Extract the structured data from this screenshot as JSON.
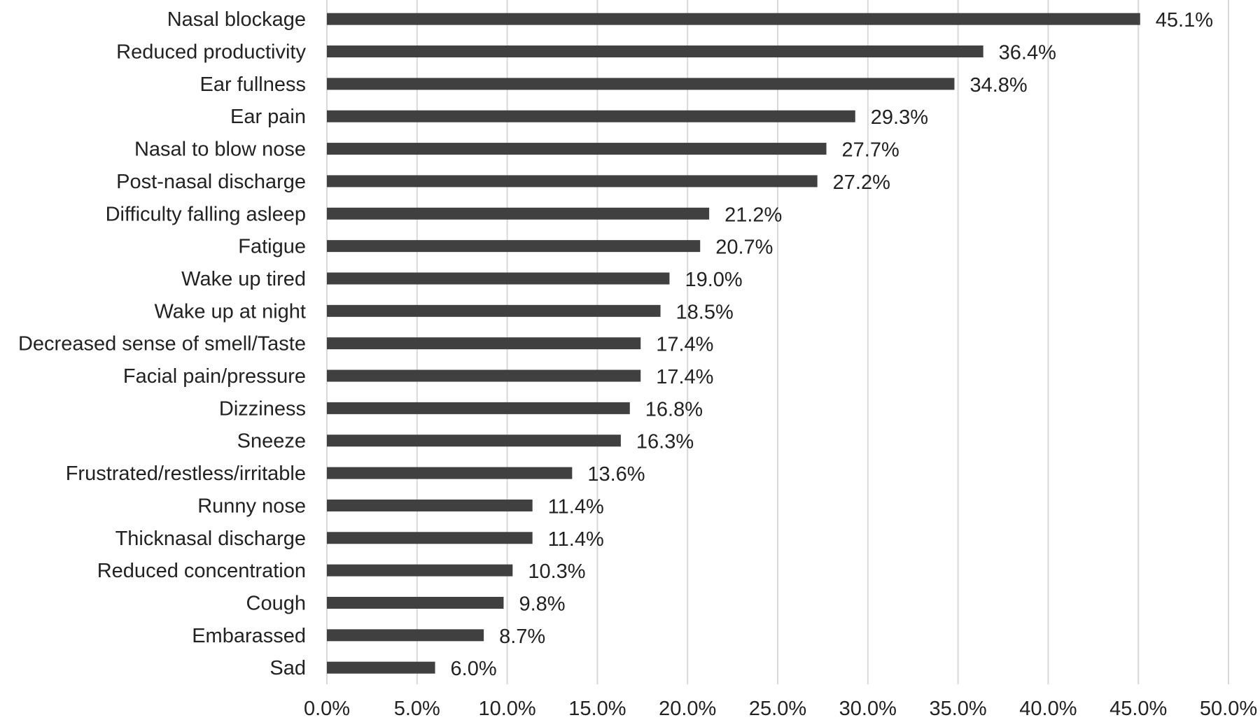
{
  "chart_data": {
    "type": "bar",
    "orientation": "horizontal",
    "title": "",
    "xlabel": "",
    "ylabel": "",
    "categories": [
      "Nasal blockage",
      "Reduced productivity",
      "Ear fullness",
      "Ear pain",
      "Nasal to blow nose",
      "Post-nasal discharge",
      "Difficulty falling asleep",
      "Fatigue",
      "Wake up tired",
      "Wake up at night",
      "Decreased sense of smell/Taste",
      "Facial pain/pressure",
      "Dizziness",
      "Sneeze",
      "Frustrated/restless/irritable",
      "Runny nose",
      "Thicknasal discharge",
      "Reduced concentration",
      "Cough",
      "Embarassed",
      "Sad"
    ],
    "values": [
      45.1,
      36.4,
      34.8,
      29.3,
      27.7,
      27.2,
      21.2,
      20.7,
      19.0,
      18.5,
      17.4,
      17.4,
      16.8,
      16.3,
      13.6,
      11.4,
      11.4,
      10.3,
      9.8,
      8.7,
      6.0
    ],
    "data_labels": [
      "45.1%",
      "36.4%",
      "34.8%",
      "29.3%",
      "27.7%",
      "27.2%",
      "21.2%",
      "20.7%",
      "19.0%",
      "18.5%",
      "17.4%",
      "17.4%",
      "16.8%",
      "16.3%",
      "13.6%",
      "11.4%",
      "11.4%",
      "10.3%",
      "9.8%",
      "8.7%",
      "6.0%"
    ],
    "xlim": [
      0,
      50
    ],
    "x_ticks": [
      0,
      5,
      10,
      15,
      20,
      25,
      30,
      35,
      40,
      45,
      50
    ],
    "x_tick_labels": [
      "0.0%",
      "5.0%",
      "10.0%",
      "15.0%",
      "20.0%",
      "25.0%",
      "30.0%",
      "35.0%",
      "40.0%",
      "45.0%",
      "50.0%"
    ],
    "grid": "vertical",
    "legend": "none",
    "colors": {
      "bar": "#404040",
      "grid": "#d9d9d9",
      "text": "#222222"
    }
  }
}
